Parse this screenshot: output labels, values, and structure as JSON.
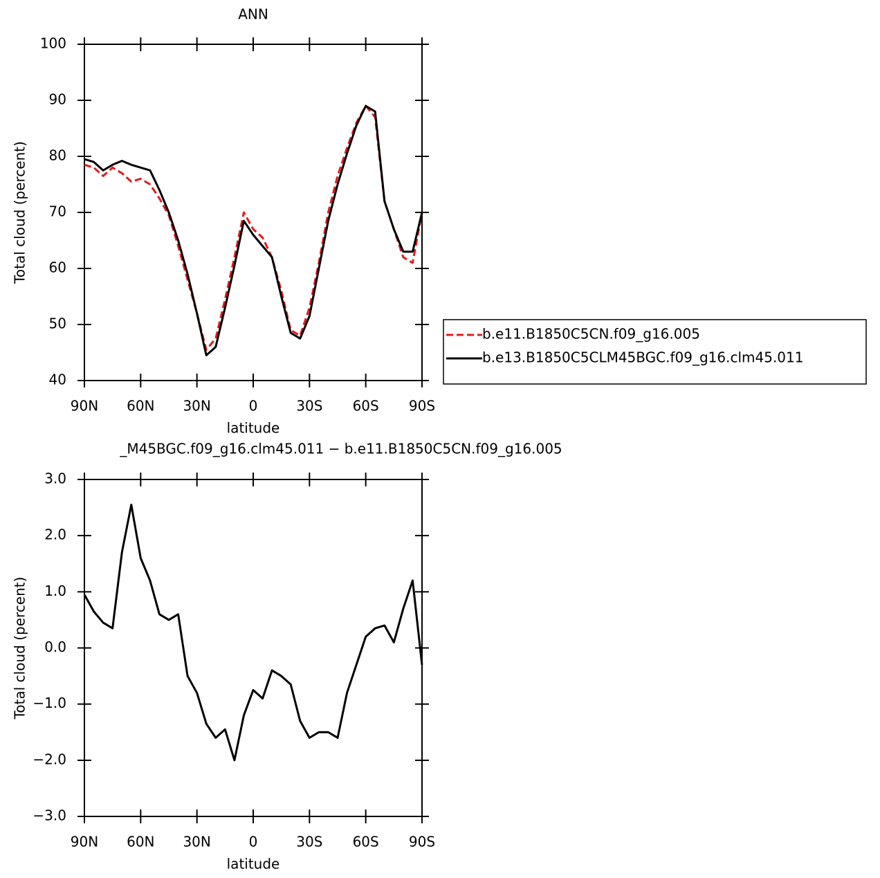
{
  "chart_data": [
    {
      "type": "line",
      "title": "ANN",
      "xlabel": "latitude",
      "ylabel": "Total cloud (percent)",
      "x": [
        90,
        85,
        80,
        75,
        70,
        65,
        60,
        55,
        50,
        45,
        40,
        35,
        30,
        25,
        20,
        15,
        10,
        5,
        0,
        -5,
        -10,
        -15,
        -20,
        -25,
        -30,
        -35,
        -40,
        -45,
        -50,
        -55,
        -60,
        -65,
        -70,
        -75,
        -80,
        -85,
        -90
      ],
      "xlim": [
        90,
        -90
      ],
      "xticks": [
        {
          "value": 90,
          "label": "90N"
        },
        {
          "value": 60,
          "label": "60N"
        },
        {
          "value": 30,
          "label": "30N"
        },
        0,
        {
          "value": -30,
          "label": "30S"
        },
        {
          "value": -60,
          "label": "60S"
        },
        {
          "value": -90,
          "label": "90S"
        }
      ],
      "ylim": [
        40,
        100
      ],
      "yticks": [
        40,
        50,
        60,
        70,
        80,
        90,
        100
      ],
      "legend": "right",
      "series": [
        {
          "name": "b.e11.B1850C5CN.f09_g16.005",
          "color": "#e41a1c",
          "line_style": "dashed",
          "values": [
            78.5,
            78,
            76.5,
            78,
            77,
            75.5,
            76,
            75,
            72.5,
            69.5,
            64,
            58,
            52,
            45.5,
            47.5,
            54.5,
            62,
            70,
            67,
            65.5,
            62,
            56,
            49,
            48,
            53,
            61,
            70,
            76.5,
            81.5,
            86,
            89,
            87,
            72,
            67,
            62,
            61,
            70
          ]
        },
        {
          "name": "b.e13.B1850C5CLM45BGC.f09_g16.clm45.011",
          "color": "#000000",
          "line_style": "solid",
          "values": [
            79.5,
            79,
            77.5,
            78.5,
            79.2,
            78.5,
            78,
            77.5,
            74,
            70,
            65,
            59,
            52,
            44.5,
            46,
            53,
            60.5,
            68.5,
            66,
            64,
            62,
            55,
            48.5,
            47.5,
            51.5,
            60,
            68.5,
            75,
            80.5,
            85.5,
            89,
            88,
            72,
            67,
            63,
            63,
            70
          ]
        }
      ]
    },
    {
      "type": "line",
      "title": "_M45BGC.f09_g16.clm45.011 − b.e11.B1850C5CN.f09_g16.005",
      "xlabel": "latitude",
      "ylabel": "Total cloud (percent)",
      "x": [
        90,
        85,
        80,
        75,
        70,
        65,
        60,
        55,
        50,
        45,
        40,
        35,
        30,
        25,
        20,
        15,
        10,
        5,
        0,
        -5,
        -10,
        -15,
        -20,
        -25,
        -30,
        -35,
        -40,
        -45,
        -50,
        -55,
        -60,
        -65,
        -70,
        -75,
        -80,
        -85,
        -90
      ],
      "xlim": [
        90,
        -90
      ],
      "xticks": [
        {
          "value": 90,
          "label": "90N"
        },
        {
          "value": 60,
          "label": "60N"
        },
        {
          "value": 30,
          "label": "30N"
        },
        0,
        {
          "value": -30,
          "label": "30S"
        },
        {
          "value": -60,
          "label": "60S"
        },
        {
          "value": -90,
          "label": "90S"
        }
      ],
      "ylim": [
        -3,
        3
      ],
      "yticks": [
        {
          "value": -3,
          "label": "−3.0"
        },
        {
          "value": -2,
          "label": "−2.0"
        },
        {
          "value": -1,
          "label": "−1.0"
        },
        {
          "value": 0,
          "label": "0.0"
        },
        {
          "value": 1,
          "label": "1.0"
        },
        {
          "value": 2,
          "label": "2.0"
        },
        {
          "value": 3,
          "label": "3.0"
        }
      ],
      "series": [
        {
          "color": "#000000",
          "line_style": "solid",
          "values": [
            0.95,
            0.65,
            0.45,
            0.35,
            1.7,
            2.55,
            1.6,
            1.2,
            0.6,
            0.5,
            0.6,
            -0.5,
            -0.8,
            -1.35,
            -1.6,
            -1.45,
            -2.0,
            -1.2,
            -0.75,
            -0.9,
            -0.4,
            -0.5,
            -0.65,
            -1.3,
            -1.6,
            -1.5,
            -1.5,
            -1.6,
            -0.8,
            -0.3,
            0.2,
            0.35,
            0.4,
            0.1,
            0.7,
            1.2,
            -0.3
          ]
        }
      ]
    }
  ]
}
